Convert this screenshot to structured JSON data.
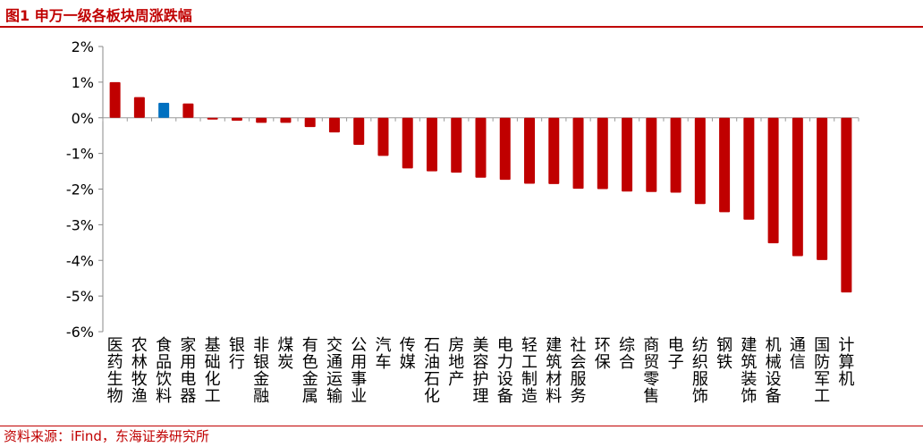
{
  "header": {
    "title": "图1  申万一级各板块周涨跌幅"
  },
  "footer": {
    "source": "资料来源：iFind，东海证券研究所"
  },
  "colors": {
    "accent": "#c00000",
    "highlight": "#0070c0"
  },
  "chart_data": {
    "type": "bar",
    "title": "图1  申万一级各板块周涨跌幅",
    "xlabel": "",
    "ylabel": "",
    "ylim": [
      -6,
      2
    ],
    "yticks": [
      "2%",
      "1%",
      "0%",
      "-1%",
      "-2%",
      "-3%",
      "-4%",
      "-5%",
      "-6%"
    ],
    "grid": false,
    "categories": [
      "医药生物",
      "农林牧渔",
      "食品饮料",
      "家用电器",
      "基础化工",
      "银行",
      "非银金融",
      "煤炭",
      "有色金属",
      "交通运输",
      "公用事业",
      "汽车",
      "传媒",
      "石油石化",
      "房地产",
      "美容护理",
      "电力设备",
      "轻工制造",
      "建筑材料",
      "社会服务",
      "环保",
      "综合",
      "商贸零售",
      "电子",
      "纺织服饰",
      "钢铁",
      "建筑装饰",
      "机械设备",
      "通信",
      "国防军工",
      "计算机"
    ],
    "values": [
      1.0,
      0.58,
      0.42,
      0.4,
      -0.05,
      -0.08,
      -0.14,
      -0.14,
      -0.26,
      -0.41,
      -0.76,
      -1.07,
      -1.42,
      -1.5,
      -1.54,
      -1.68,
      -1.74,
      -1.85,
      -1.86,
      -1.99,
      -2.0,
      -2.07,
      -2.08,
      -2.1,
      -2.42,
      -2.65,
      -2.86,
      -3.52,
      -3.88,
      -3.99,
      -4.9
    ],
    "highlight_category": "食品饮料",
    "bar_color": "#c00000",
    "highlight_color": "#0070c0"
  }
}
